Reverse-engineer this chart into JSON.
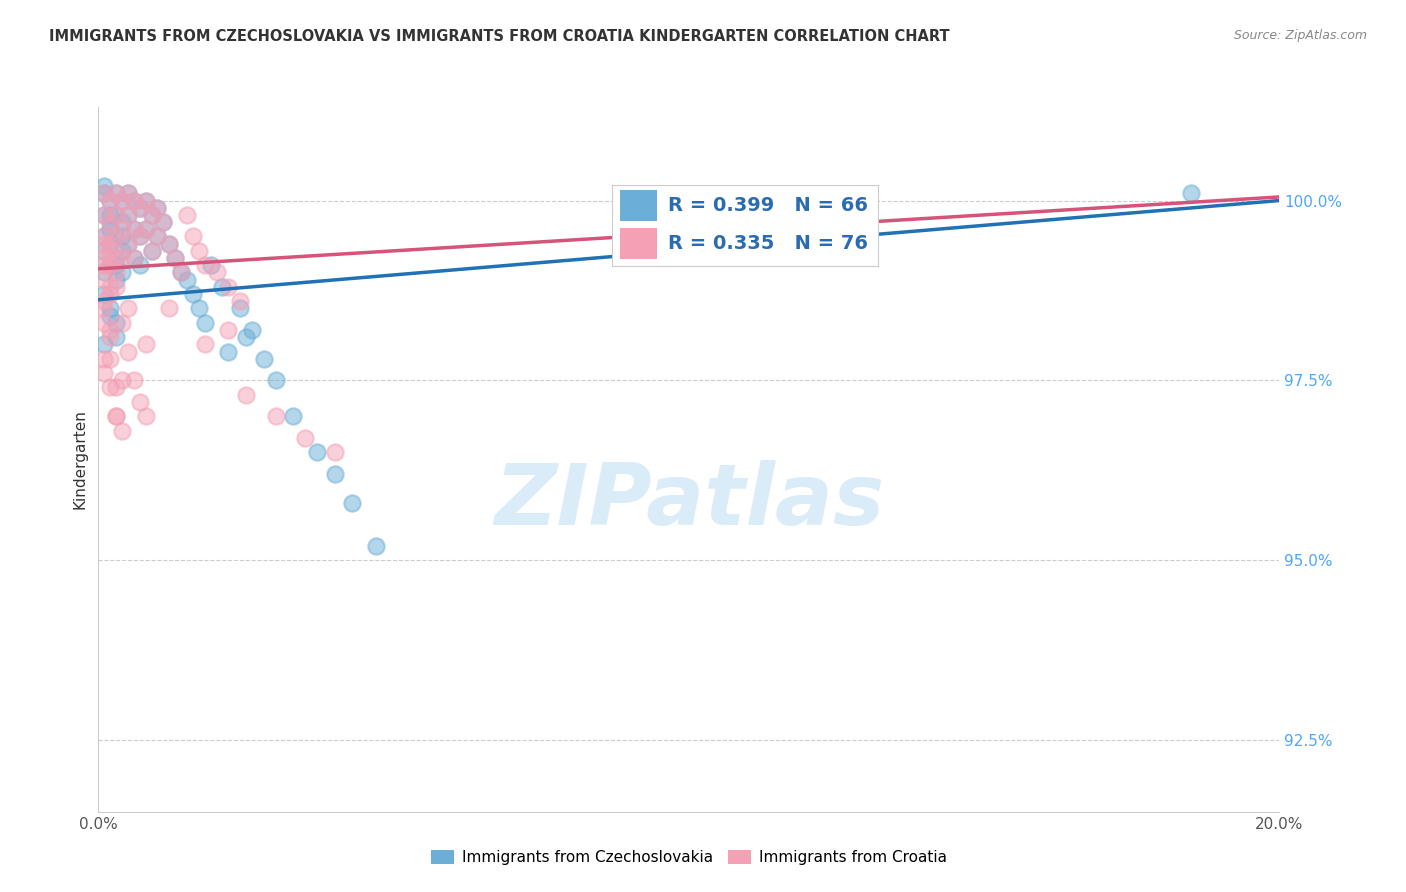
{
  "title": "IMMIGRANTS FROM CZECHOSLOVAKIA VS IMMIGRANTS FROM CROATIA KINDERGARTEN CORRELATION CHART",
  "source": "Source: ZipAtlas.com",
  "ylabel": "Kindergarten",
  "yticks": [
    92.5,
    95.0,
    97.5,
    100.0
  ],
  "ytick_labels": [
    "92.5%",
    "95.0%",
    "97.5%",
    "100.0%"
  ],
  "xmin": 0.0,
  "xmax": 0.2,
  "ymin": 91.5,
  "ymax": 101.3,
  "color_czech": "#6baed6",
  "color_croatia": "#f4a0b5",
  "line_color_czech": "#2171b5",
  "line_color_croatia": "#d6537a",
  "legend_R_czech": "R = 0.399",
  "legend_N_czech": "N = 66",
  "legend_R_croatia": "R = 0.335",
  "legend_N_croatia": "N = 76",
  "watermark_color": "#d6eaf8",
  "grid_color": "#cccccc",
  "title_color": "#333333",
  "source_color": "#888888",
  "ytick_color": "#4da6ff",
  "xtick_color": "#555555",
  "legend_text_color": "#2b6cb0",
  "czech_line_y0": 98.62,
  "czech_line_y1": 100.0,
  "croatia_line_y0": 99.05,
  "croatia_line_y1": 100.05,
  "czech_x": [
    0.001,
    0.001,
    0.001,
    0.002,
    0.002,
    0.002,
    0.002,
    0.003,
    0.003,
    0.003,
    0.003,
    0.003,
    0.004,
    0.004,
    0.004,
    0.004,
    0.005,
    0.005,
    0.005,
    0.006,
    0.006,
    0.006,
    0.007,
    0.007,
    0.007,
    0.008,
    0.008,
    0.009,
    0.009,
    0.01,
    0.01,
    0.011,
    0.012,
    0.013,
    0.014,
    0.015,
    0.016,
    0.017,
    0.019,
    0.021,
    0.024,
    0.026,
    0.028,
    0.03,
    0.033,
    0.037,
    0.04,
    0.043,
    0.047,
    0.018,
    0.022,
    0.025,
    0.001,
    0.001,
    0.002,
    0.003,
    0.001,
    0.001,
    0.002,
    0.002,
    0.002,
    0.003,
    0.003,
    0.185,
    0.001,
    0.004
  ],
  "czech_y": [
    100.1,
    99.8,
    99.5,
    100.0,
    99.7,
    99.4,
    99.1,
    100.1,
    99.8,
    99.5,
    99.2,
    98.9,
    100.0,
    99.7,
    99.3,
    99.0,
    100.1,
    99.8,
    99.4,
    100.0,
    99.6,
    99.2,
    99.9,
    99.5,
    99.1,
    100.0,
    99.6,
    99.8,
    99.3,
    99.9,
    99.5,
    99.7,
    99.4,
    99.2,
    99.0,
    98.9,
    98.7,
    98.5,
    99.1,
    98.8,
    98.5,
    98.2,
    97.8,
    97.5,
    97.0,
    96.5,
    96.2,
    95.8,
    95.2,
    98.3,
    97.9,
    98.1,
    99.3,
    98.7,
    98.4,
    98.1,
    100.2,
    99.0,
    99.6,
    98.5,
    99.8,
    99.1,
    98.3,
    100.1,
    98.0,
    99.5
  ],
  "croatia_x": [
    0.001,
    0.001,
    0.001,
    0.001,
    0.002,
    0.002,
    0.002,
    0.002,
    0.003,
    0.003,
    0.003,
    0.003,
    0.004,
    0.004,
    0.004,
    0.005,
    0.005,
    0.005,
    0.006,
    0.006,
    0.006,
    0.007,
    0.007,
    0.008,
    0.008,
    0.009,
    0.009,
    0.01,
    0.01,
    0.011,
    0.012,
    0.013,
    0.014,
    0.015,
    0.016,
    0.017,
    0.018,
    0.02,
    0.022,
    0.024,
    0.001,
    0.001,
    0.002,
    0.002,
    0.003,
    0.003,
    0.004,
    0.004,
    0.005,
    0.005,
    0.006,
    0.007,
    0.008,
    0.001,
    0.001,
    0.001,
    0.002,
    0.002,
    0.002,
    0.003,
    0.025,
    0.03,
    0.035,
    0.04,
    0.018,
    0.008,
    0.012,
    0.003,
    0.004,
    0.001,
    0.001,
    0.001,
    0.022,
    0.003,
    0.002,
    0.002
  ],
  "croatia_y": [
    100.1,
    99.8,
    99.5,
    99.2,
    100.0,
    99.7,
    99.4,
    99.1,
    100.1,
    99.8,
    99.5,
    99.2,
    100.0,
    99.6,
    99.2,
    100.1,
    99.8,
    99.4,
    100.0,
    99.6,
    99.2,
    99.9,
    99.5,
    100.0,
    99.6,
    99.8,
    99.3,
    99.9,
    99.5,
    99.7,
    99.4,
    99.2,
    99.0,
    99.8,
    99.5,
    99.3,
    99.1,
    99.0,
    98.8,
    98.6,
    98.9,
    98.5,
    98.2,
    97.8,
    97.4,
    97.0,
    96.8,
    98.3,
    97.9,
    98.5,
    97.5,
    97.2,
    98.0,
    99.1,
    98.3,
    97.6,
    98.8,
    98.1,
    97.4,
    97.0,
    97.3,
    97.0,
    96.7,
    96.5,
    98.0,
    97.0,
    98.5,
    98.8,
    97.5,
    99.4,
    98.6,
    97.8,
    98.2,
    99.0,
    99.3,
    98.7
  ]
}
